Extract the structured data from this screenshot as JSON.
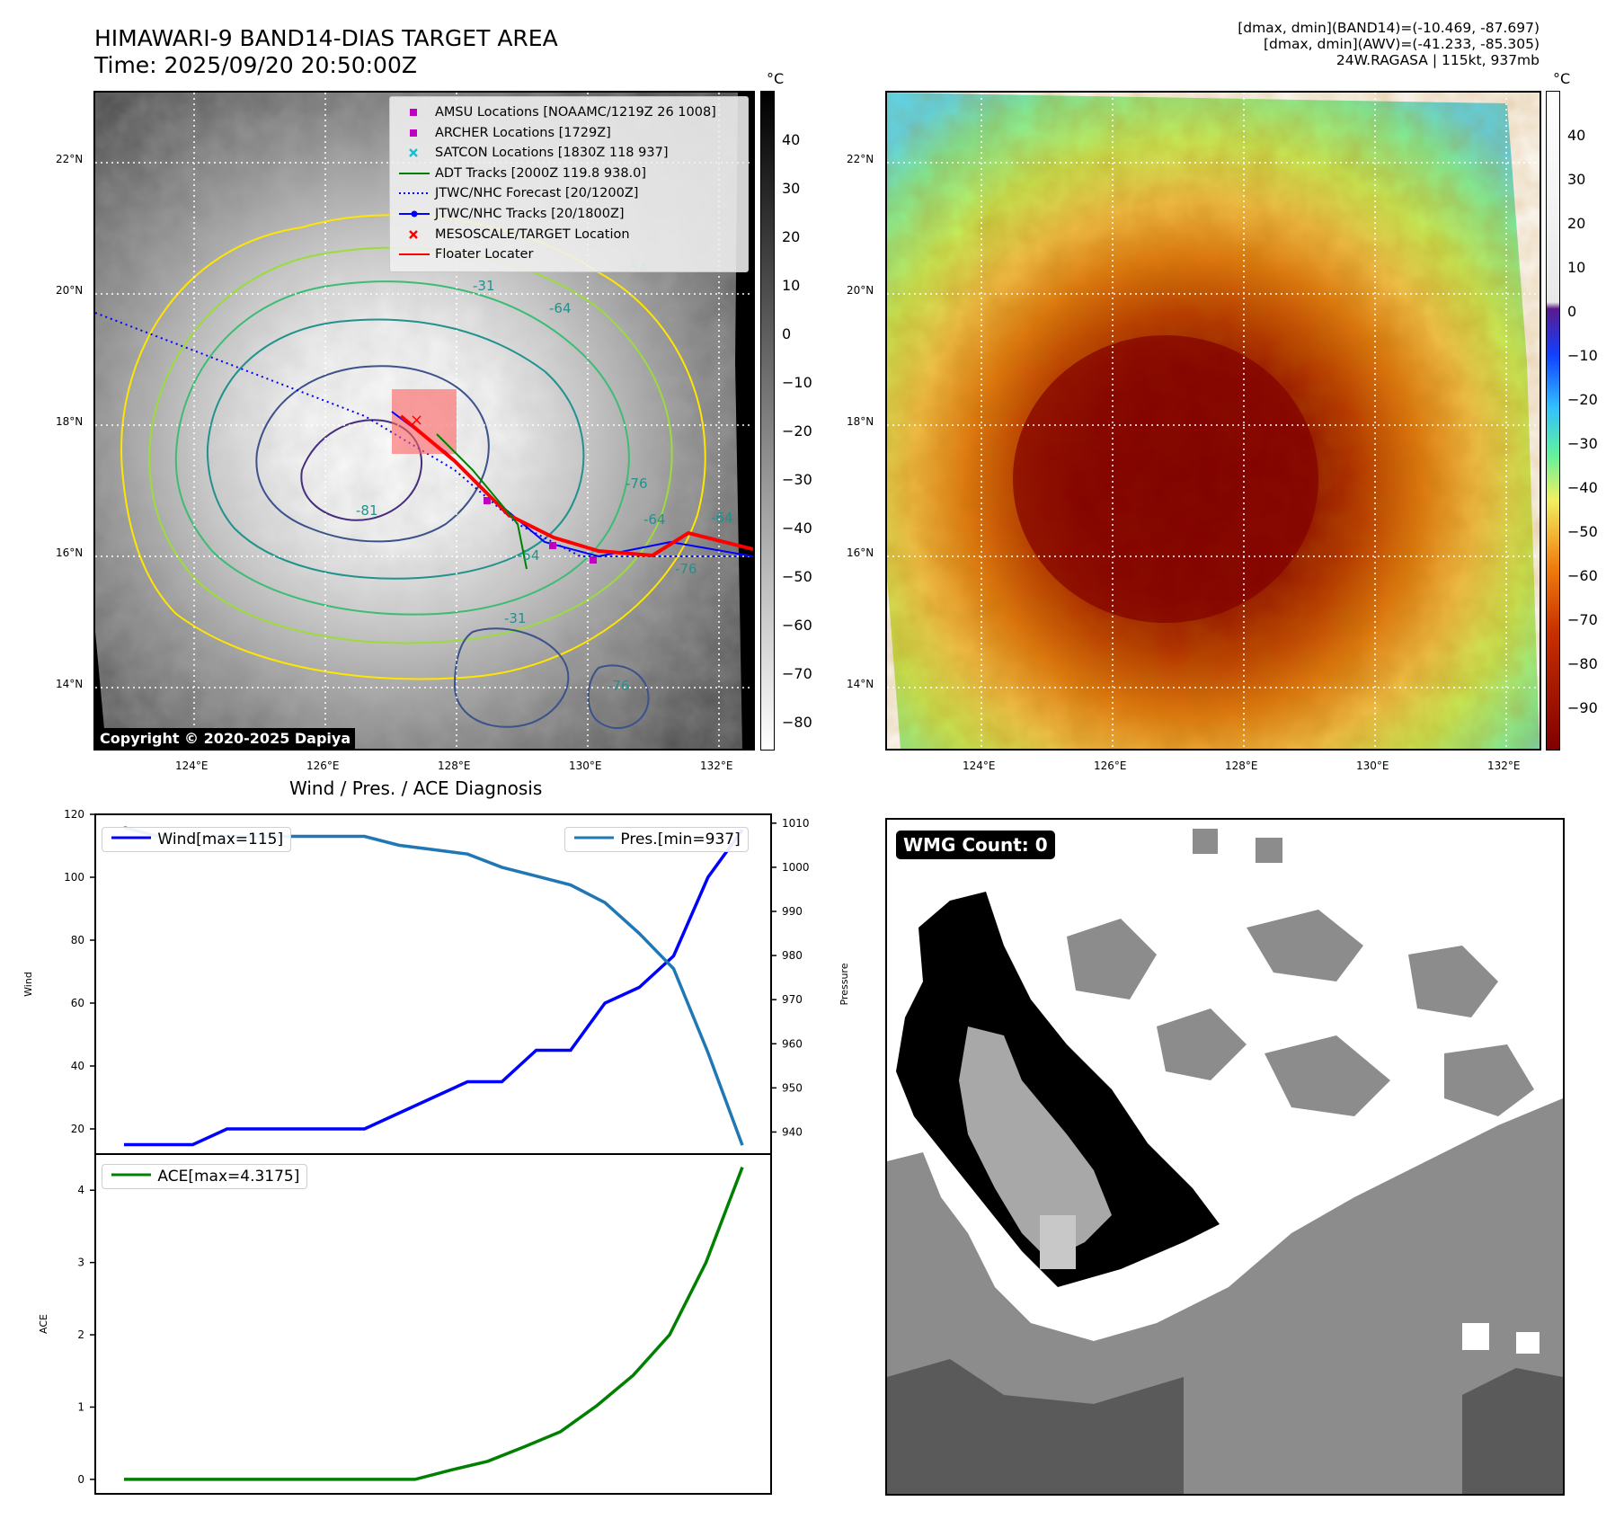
{
  "header": {
    "title_line1": "HIMAWARI-9 BAND14-DIAS TARGET AREA",
    "title_line2": "Time: 2025/09/20 20:50:00Z",
    "info_line1": "[dmax, dmin](BAND14)=(-10.469, -87.697)",
    "info_line2": "[dmax, dmin](AWV)=(-41.233, -85.305)",
    "info_line3": "24W.RAGASA | 115kt, 937mb"
  },
  "map_ticks": {
    "lat": [
      "22°N",
      "20°N",
      "18°N",
      "16°N",
      "14°N"
    ],
    "lon": [
      "124°E",
      "126°E",
      "128°E",
      "130°E",
      "132°E"
    ]
  },
  "colorbars": {
    "unit": "°C",
    "left_ticks": [
      "40",
      "30",
      "20",
      "10",
      "0",
      "−10",
      "−20",
      "−30",
      "−40",
      "−50",
      "−60",
      "−70",
      "−80"
    ],
    "right_ticks": [
      "40",
      "30",
      "20",
      "10",
      "0",
      "−10",
      "−20",
      "−30",
      "−40",
      "−50",
      "−60",
      "−70",
      "−80",
      "−90"
    ]
  },
  "legend": {
    "items": [
      "AMSU Locations [NOAAMC/1219Z 26 1008]",
      "ARCHER Locations [1729Z]",
      "SATCON Locations [1830Z 118 937]",
      "ADT Tracks [2000Z 119.8 938.0]",
      "JTWC/NHC Forecast [20/1200Z]",
      "JTWC/NHC Tracks [20/1800Z]",
      "MESOSCALE/TARGET Location",
      "Floater Locater"
    ]
  },
  "contour_labels": [
    "-31",
    "-54",
    "-64",
    "-76",
    "-81",
    "-54",
    "-31",
    "-64",
    "-76",
    "-76",
    "-64"
  ],
  "copyright": "Copyright © 2020-2025 Dapiya",
  "colors": {
    "wind": "#0000ff",
    "pressure": "#1f77b4",
    "ace": "#008000",
    "forecast": "#0000ff",
    "floater": "#ff0000",
    "adt": "#008000",
    "satcon": "#17becf",
    "amsu": "#c000c0"
  },
  "chart_data": [
    {
      "type": "line",
      "title": "Wind / Pres. / ACE Diagnosis",
      "ylabel": "Wind",
      "ylabel_right": "Pressure",
      "ylim": [
        12,
        120
      ],
      "ylim_right": [
        935,
        1012
      ],
      "yticks": [
        20,
        40,
        60,
        80,
        100,
        120
      ],
      "yticks_right": [
        940,
        950,
        960,
        970,
        980,
        990,
        1000,
        1010
      ],
      "legend_left": "Wind[max=115]",
      "legend_right": "Pres.[min=937]",
      "series": [
        {
          "name": "Wind",
          "values": [
            15,
            15,
            15,
            20,
            20,
            20,
            20,
            20,
            25,
            30,
            35,
            35,
            45,
            45,
            60,
            65,
            75,
            100,
            115
          ]
        },
        {
          "name": "Pres.",
          "values": [
            1009,
            1007,
            1007,
            1007,
            1007,
            1007,
            1007,
            1007,
            1005,
            1004,
            1003,
            1000,
            998,
            996,
            992,
            985,
            977,
            958,
            937
          ]
        }
      ]
    },
    {
      "type": "line",
      "ylabel": "ACE",
      "ylim": [
        -0.2,
        4.5
      ],
      "yticks": [
        0,
        1,
        2,
        3,
        4
      ],
      "legend": "ACE[max=4.3175]",
      "series": [
        {
          "name": "ACE",
          "values": [
            0,
            0,
            0,
            0,
            0,
            0,
            0,
            0,
            0,
            0.13,
            0.25,
            0.45,
            0.66,
            1.02,
            1.44,
            2.0,
            3.0,
            4.3175
          ]
        }
      ]
    }
  ],
  "wmg": {
    "label": "WMG Count: 0"
  }
}
